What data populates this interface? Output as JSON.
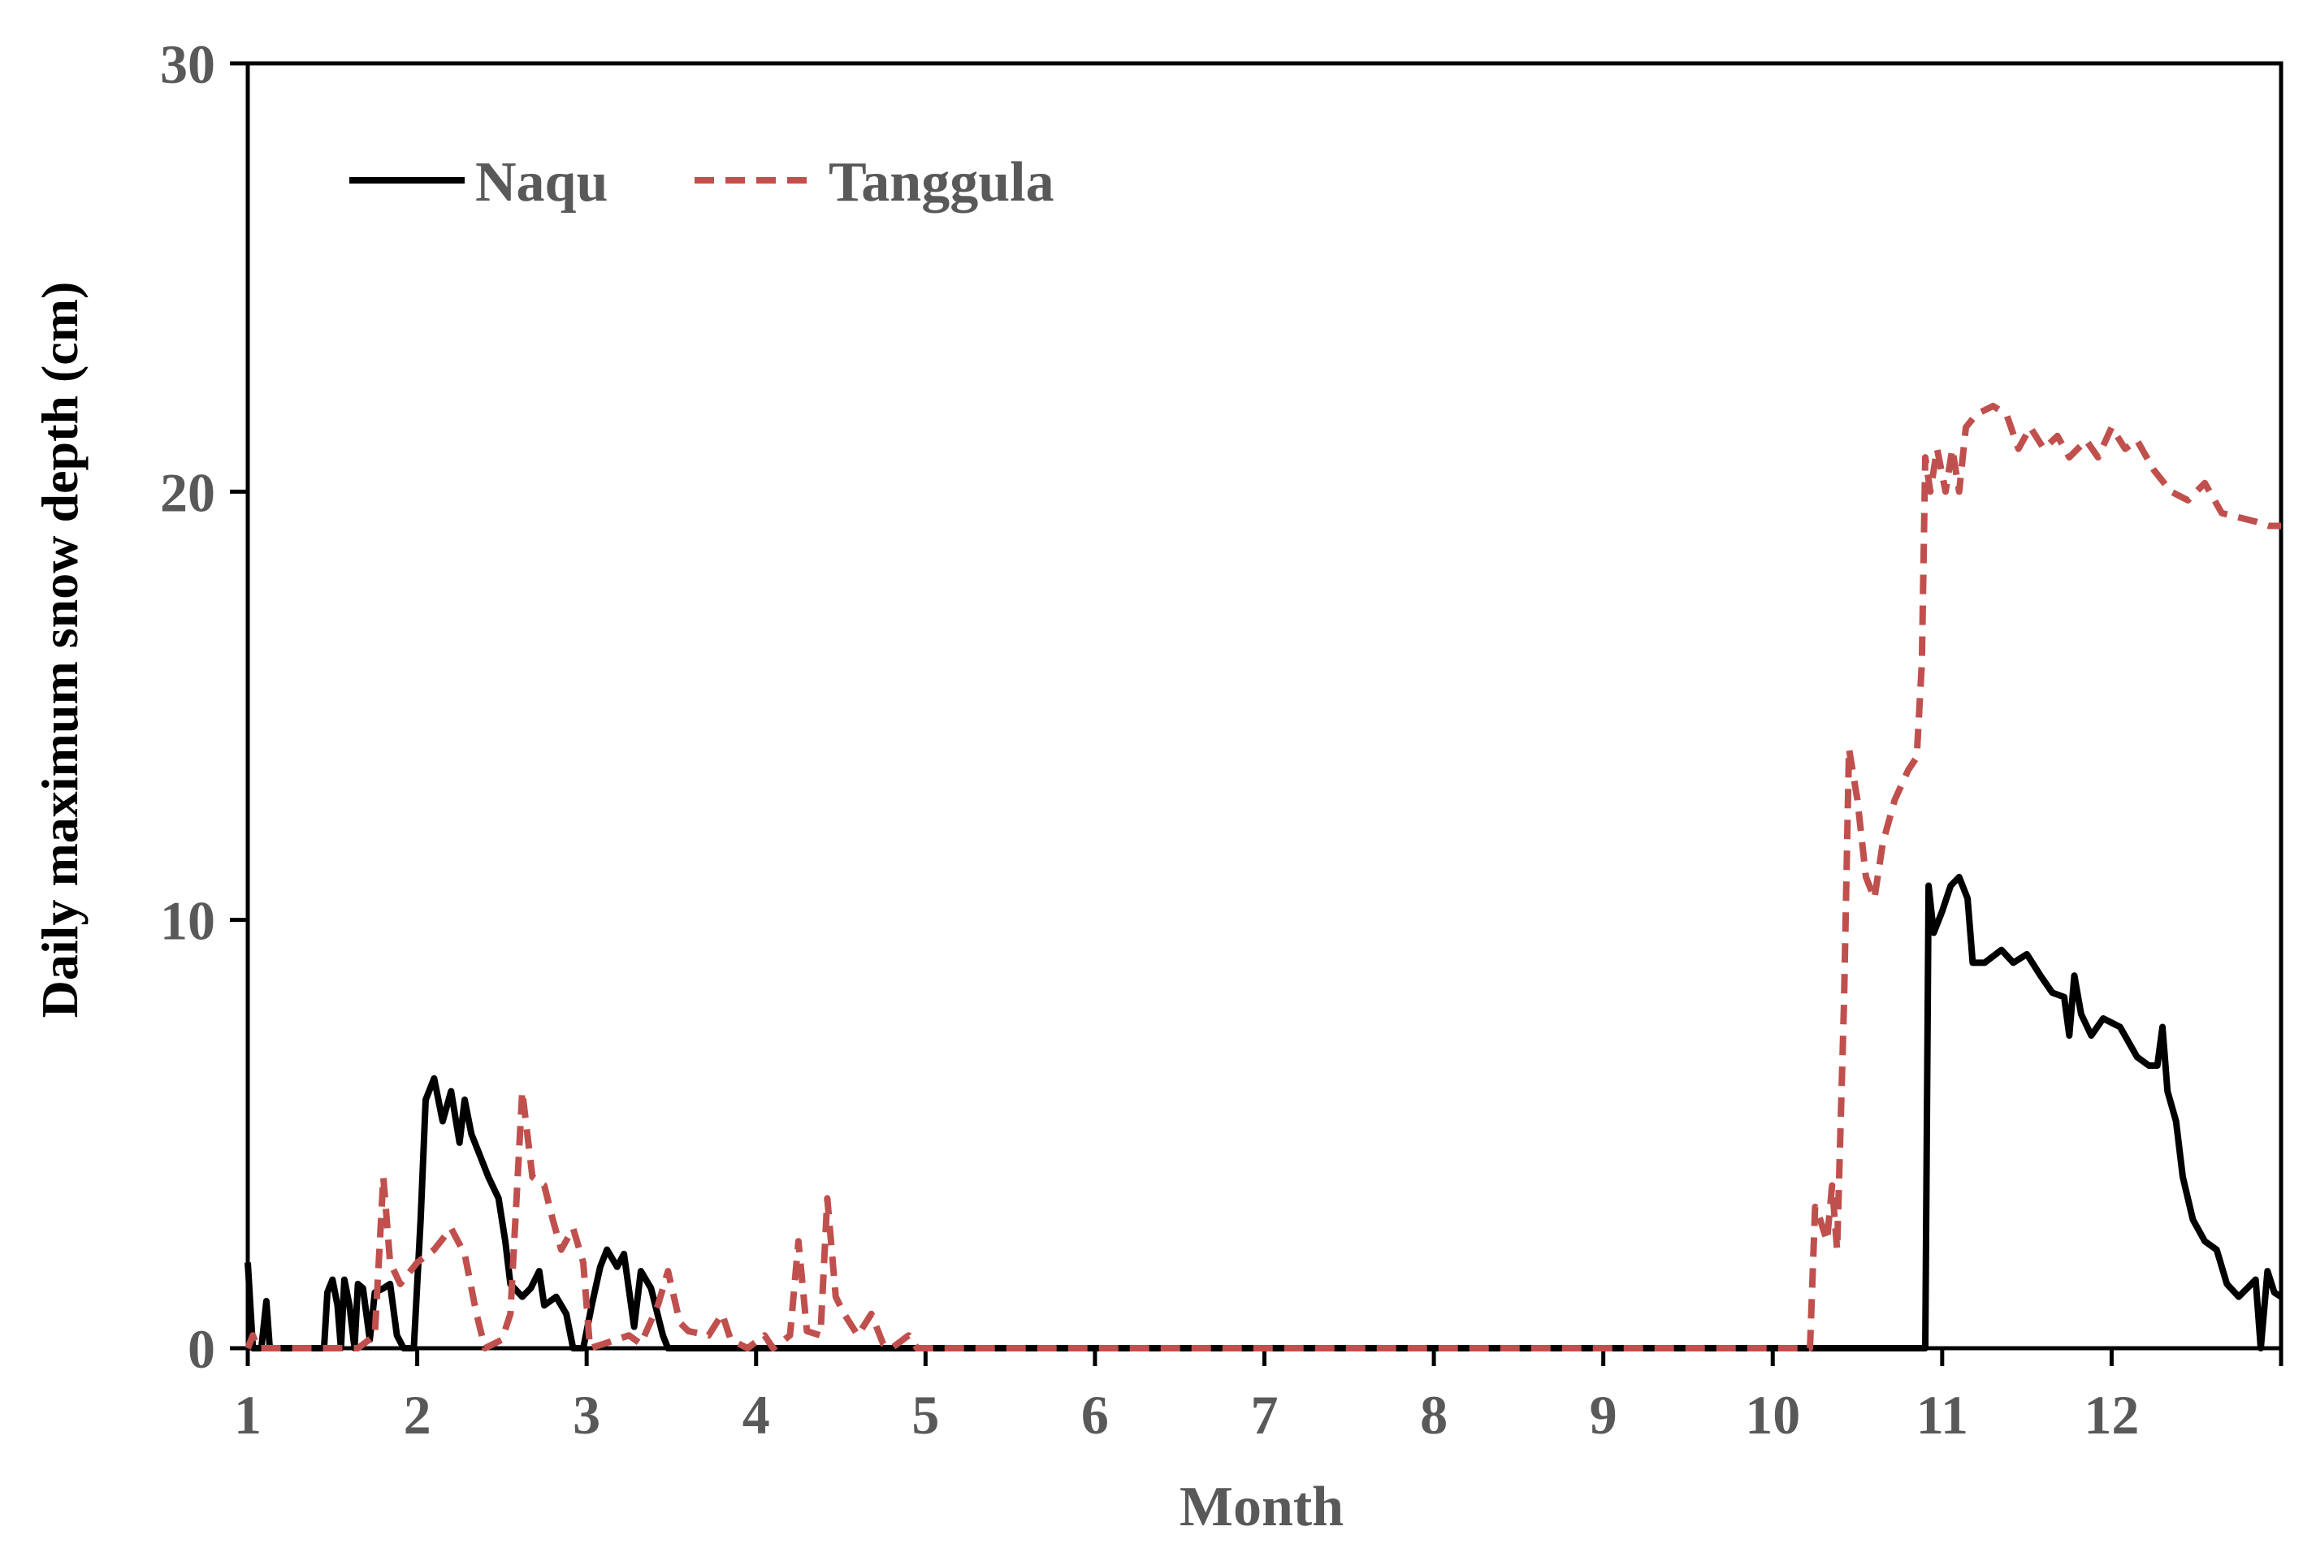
{
  "chart_data": {
    "type": "line",
    "title": "",
    "xlabel": "Month",
    "ylabel": "Daily maximum snow depth (cm)",
    "xlim": [
      1,
      13
    ],
    "ylim": [
      0,
      30
    ],
    "xticks": [
      1,
      2,
      3,
      4,
      5,
      6,
      7,
      8,
      9,
      10,
      11,
      12
    ],
    "yticks": [
      0,
      10,
      20,
      30
    ],
    "xtick_labels": [
      "1",
      "2",
      "3",
      "4",
      "5",
      "6",
      "7",
      "8",
      "9",
      "10",
      "11",
      "12"
    ],
    "ytick_labels": [
      "0",
      "10",
      "20",
      "30"
    ],
    "grid": false,
    "legend_position": "top-left",
    "series": [
      {
        "name": "Naqu",
        "color": "#000000",
        "style": "solid",
        "points": [
          [
            1.0,
            2.0
          ],
          [
            1.03,
            0.0
          ],
          [
            1.08,
            0.0
          ],
          [
            1.11,
            1.1
          ],
          [
            1.13,
            0.0
          ],
          [
            1.2,
            0.0
          ],
          [
            1.45,
            0.0
          ],
          [
            1.47,
            1.3
          ],
          [
            1.5,
            1.6
          ],
          [
            1.53,
            1.0
          ],
          [
            1.55,
            0.0
          ],
          [
            1.57,
            1.6
          ],
          [
            1.6,
            1.0
          ],
          [
            1.63,
            0.0
          ],
          [
            1.65,
            1.5
          ],
          [
            1.68,
            1.4
          ],
          [
            1.72,
            0.2
          ],
          [
            1.75,
            1.3
          ],
          [
            1.8,
            1.4
          ],
          [
            1.84,
            1.5
          ],
          [
            1.88,
            0.3
          ],
          [
            1.92,
            0.0
          ],
          [
            1.98,
            0.0
          ],
          [
            2.02,
            3.0
          ],
          [
            2.05,
            5.8
          ],
          [
            2.1,
            6.3
          ],
          [
            2.15,
            5.3
          ],
          [
            2.2,
            6.0
          ],
          [
            2.25,
            4.8
          ],
          [
            2.28,
            5.8
          ],
          [
            2.32,
            5.0
          ],
          [
            2.37,
            4.5
          ],
          [
            2.42,
            4.0
          ],
          [
            2.48,
            3.5
          ],
          [
            2.52,
            2.5
          ],
          [
            2.55,
            1.5
          ],
          [
            2.62,
            1.2
          ],
          [
            2.67,
            1.4
          ],
          [
            2.72,
            1.8
          ],
          [
            2.75,
            1.0
          ],
          [
            2.82,
            1.2
          ],
          [
            2.88,
            0.8
          ],
          [
            2.92,
            0.0
          ],
          [
            2.98,
            0.0
          ],
          [
            3.03,
            1.0
          ],
          [
            3.08,
            1.9
          ],
          [
            3.12,
            2.3
          ],
          [
            3.18,
            1.9
          ],
          [
            3.22,
            2.2
          ],
          [
            3.28,
            0.5
          ],
          [
            3.32,
            1.8
          ],
          [
            3.38,
            1.4
          ],
          [
            3.45,
            0.3
          ],
          [
            3.48,
            0.0
          ],
          [
            10.85,
            0.0
          ],
          [
            10.9,
            0.0
          ],
          [
            10.92,
            10.8
          ],
          [
            10.95,
            9.7
          ],
          [
            11.0,
            10.2
          ],
          [
            11.05,
            10.8
          ],
          [
            11.1,
            11.0
          ],
          [
            11.15,
            10.5
          ],
          [
            11.18,
            9.0
          ],
          [
            11.25,
            9.0
          ],
          [
            11.35,
            9.3
          ],
          [
            11.42,
            9.0
          ],
          [
            11.5,
            9.2
          ],
          [
            11.58,
            8.7
          ],
          [
            11.65,
            8.3
          ],
          [
            11.72,
            8.2
          ],
          [
            11.75,
            7.3
          ],
          [
            11.78,
            8.7
          ],
          [
            11.82,
            7.8
          ],
          [
            11.88,
            7.3
          ],
          [
            11.95,
            7.7
          ],
          [
            12.05,
            7.5
          ],
          [
            12.15,
            6.8
          ],
          [
            12.22,
            6.6
          ],
          [
            12.27,
            6.6
          ],
          [
            12.3,
            7.5
          ],
          [
            12.33,
            6.0
          ],
          [
            12.38,
            5.3
          ],
          [
            12.42,
            4.0
          ],
          [
            12.48,
            3.0
          ],
          [
            12.55,
            2.5
          ],
          [
            12.62,
            2.3
          ],
          [
            12.68,
            1.5
          ],
          [
            12.75,
            1.2
          ],
          [
            12.8,
            1.4
          ],
          [
            12.85,
            1.6
          ],
          [
            12.88,
            0.0
          ],
          [
            12.92,
            1.8
          ],
          [
            12.96,
            1.3
          ],
          [
            13.0,
            1.2
          ]
        ]
      },
      {
        "name": "Tanggula",
        "color": "#c0504d",
        "style": "dashed",
        "points": [
          [
            1.0,
            0.0
          ],
          [
            1.03,
            0.3
          ],
          [
            1.06,
            0.0
          ],
          [
            1.2,
            0.0
          ],
          [
            1.4,
            0.0
          ],
          [
            1.65,
            0.0
          ],
          [
            1.75,
            0.3
          ],
          [
            1.8,
            4.0
          ],
          [
            1.84,
            2.0
          ],
          [
            1.9,
            1.5
          ],
          [
            2.0,
            2.0
          ],
          [
            2.1,
            2.3
          ],
          [
            2.2,
            2.8
          ],
          [
            2.28,
            2.2
          ],
          [
            2.35,
            0.8
          ],
          [
            2.4,
            0.0
          ],
          [
            2.5,
            0.2
          ],
          [
            2.55,
            0.8
          ],
          [
            2.62,
            6.0
          ],
          [
            2.68,
            4.0
          ],
          [
            2.75,
            3.8
          ],
          [
            2.8,
            3.0
          ],
          [
            2.85,
            2.3
          ],
          [
            2.92,
            2.8
          ],
          [
            2.98,
            2.0
          ],
          [
            3.02,
            0.0
          ],
          [
            3.1,
            0.1
          ],
          [
            3.25,
            0.3
          ],
          [
            3.32,
            0.1
          ],
          [
            3.42,
            1.0
          ],
          [
            3.48,
            1.8
          ],
          [
            3.55,
            0.6
          ],
          [
            3.6,
            0.4
          ],
          [
            3.72,
            0.3
          ],
          [
            3.8,
            0.8
          ],
          [
            3.85,
            0.2
          ],
          [
            3.95,
            0.0
          ],
          [
            4.05,
            0.3
          ],
          [
            4.1,
            0.0
          ],
          [
            4.2,
            0.3
          ],
          [
            4.25,
            2.5
          ],
          [
            4.3,
            0.4
          ],
          [
            4.38,
            0.3
          ],
          [
            4.42,
            3.5
          ],
          [
            4.47,
            1.2
          ],
          [
            4.52,
            0.8
          ],
          [
            4.6,
            0.3
          ],
          [
            4.68,
            0.8
          ],
          [
            4.75,
            0.1
          ],
          [
            4.8,
            0.0
          ],
          [
            4.9,
            0.3
          ],
          [
            4.95,
            0.0
          ],
          [
            6.0,
            0.0
          ],
          [
            8.0,
            0.0
          ],
          [
            10.22,
            0.0
          ],
          [
            10.25,
            3.3
          ],
          [
            10.28,
            3.0
          ],
          [
            10.32,
            2.5
          ],
          [
            10.35,
            3.8
          ],
          [
            10.38,
            2.3
          ],
          [
            10.42,
            8.0
          ],
          [
            10.45,
            14.0
          ],
          [
            10.5,
            12.8
          ],
          [
            10.55,
            11.0
          ],
          [
            10.6,
            10.5
          ],
          [
            10.65,
            11.8
          ],
          [
            10.72,
            12.8
          ],
          [
            10.8,
            13.5
          ],
          [
            10.85,
            13.8
          ],
          [
            10.88,
            16.0
          ],
          [
            10.9,
            20.8
          ],
          [
            10.93,
            20.0
          ],
          [
            10.97,
            21.0
          ],
          [
            11.02,
            20.0
          ],
          [
            11.06,
            21.0
          ],
          [
            11.1,
            20.0
          ],
          [
            11.14,
            21.5
          ],
          [
            11.2,
            21.8
          ],
          [
            11.3,
            22.0
          ],
          [
            11.38,
            21.8
          ],
          [
            11.45,
            21.0
          ],
          [
            11.52,
            21.5
          ],
          [
            11.6,
            21.0
          ],
          [
            11.68,
            21.3
          ],
          [
            11.75,
            20.8
          ],
          [
            11.85,
            21.2
          ],
          [
            11.92,
            20.8
          ],
          [
            12.0,
            21.5
          ],
          [
            12.08,
            21.0
          ],
          [
            12.15,
            21.2
          ],
          [
            12.25,
            20.5
          ],
          [
            12.35,
            20.0
          ],
          [
            12.45,
            19.8
          ],
          [
            12.55,
            20.2
          ],
          [
            12.65,
            19.5
          ],
          [
            12.75,
            19.4
          ],
          [
            12.85,
            19.3
          ],
          [
            12.93,
            19.2
          ],
          [
            13.0,
            19.2
          ]
        ]
      }
    ]
  }
}
